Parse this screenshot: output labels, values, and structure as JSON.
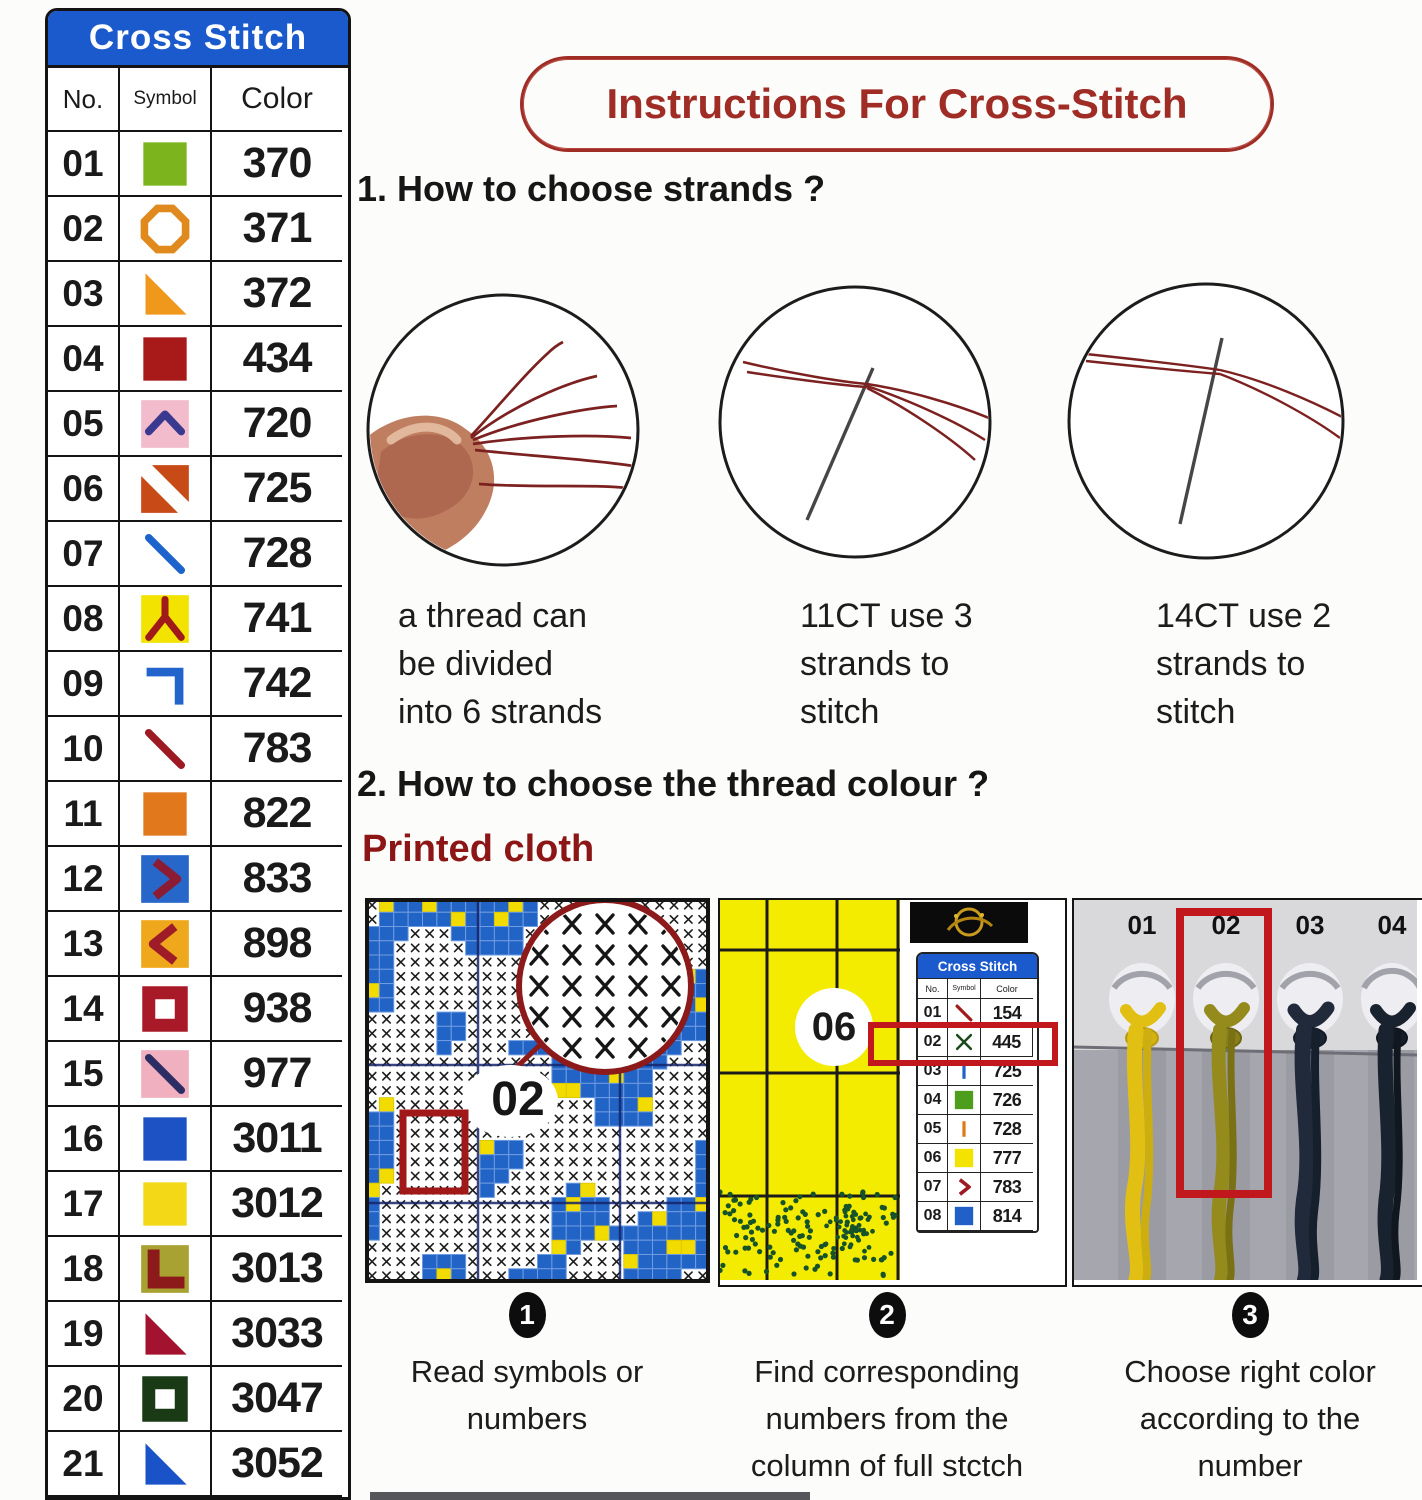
{
  "legend": {
    "title": "Cross Stitch",
    "header_bg": "#1a5acc",
    "columns": [
      "No.",
      "Symbol",
      "Color"
    ],
    "rows": [
      {
        "no": "01",
        "color": "370",
        "symbol": {
          "type": "square",
          "fill": "#7cb41e"
        }
      },
      {
        "no": "02",
        "color": "371",
        "symbol": {
          "type": "octagon",
          "stroke": "#e0891c"
        }
      },
      {
        "no": "03",
        "color": "372",
        "symbol": {
          "type": "triangle",
          "fill": "#f0981c"
        }
      },
      {
        "no": "04",
        "color": "434",
        "symbol": {
          "type": "square",
          "fill": "#a81a1a"
        }
      },
      {
        "no": "05",
        "color": "720",
        "symbol": {
          "type": "chevron-up",
          "bg": "#f2bccd",
          "stroke": "#39398f"
        }
      },
      {
        "no": "06",
        "color": "725",
        "symbol": {
          "type": "stripe-square",
          "fill": "#c84a16"
        }
      },
      {
        "no": "07",
        "color": "728",
        "symbol": {
          "type": "diagonal",
          "stroke": "#1d63cc"
        }
      },
      {
        "no": "08",
        "color": "741",
        "symbol": {
          "type": "inverted-y",
          "bg": "#f2e400",
          "stroke": "#a01a1a"
        }
      },
      {
        "no": "09",
        "color": "742",
        "symbol": {
          "type": "corner",
          "stroke": "#2263cc"
        }
      },
      {
        "no": "10",
        "color": "783",
        "symbol": {
          "type": "diagonal",
          "stroke": "#9e1a22"
        }
      },
      {
        "no": "11",
        "color": "822",
        "symbol": {
          "type": "square",
          "fill": "#e2781c"
        }
      },
      {
        "no": "12",
        "color": "833",
        "symbol": {
          "type": "chevron-right",
          "bg": "#2767ca",
          "stroke": "#8c1c34"
        }
      },
      {
        "no": "13",
        "color": "898",
        "symbol": {
          "type": "chevron-left",
          "bg": "#efa81c",
          "stroke": "#9e1c28"
        }
      },
      {
        "no": "14",
        "color": "938",
        "symbol": {
          "type": "hollow-square",
          "fill": "#a81a28"
        }
      },
      {
        "no": "15",
        "color": "977",
        "symbol": {
          "type": "diag-on-square",
          "bg": "#f0b0bf",
          "stroke": "#2d2d66"
        }
      },
      {
        "no": "16",
        "color": "3011",
        "symbol": {
          "type": "square",
          "fill": "#1c52c4"
        }
      },
      {
        "no": "17",
        "color": "3012",
        "symbol": {
          "type": "square",
          "fill": "#f2d816"
        }
      },
      {
        "no": "18",
        "color": "3013",
        "symbol": {
          "type": "l-shape",
          "bg": "#a8a233",
          "stroke": "#8c1a1a"
        }
      },
      {
        "no": "19",
        "color": "3033",
        "symbol": {
          "type": "triangle",
          "fill": "#a3122e"
        }
      },
      {
        "no": "20",
        "color": "3047",
        "symbol": {
          "type": "hollow-square",
          "fill": "#1a3a16"
        }
      },
      {
        "no": "21",
        "color": "3052",
        "symbol": {
          "type": "triangle",
          "fill": "#1a52c8"
        }
      }
    ]
  },
  "instructions": {
    "title": "Instructions For Cross-Stitch",
    "accent_color": "#a02c26",
    "section1": {
      "heading": "1. How to choose strands ?",
      "captions": [
        "a thread can\nbe divided\ninto 6 strands",
        "11CT use 3\nstrands to\nstitch",
        "14CT use 2\nstrands to\nstitch"
      ]
    },
    "section2": {
      "heading": "2. How to choose the thread colour ?",
      "subheading": "Printed cloth",
      "figure1": {
        "highlight_label": "02"
      },
      "figure2": {
        "cell_label": "06",
        "mini_table": {
          "title": "Cross Stitch",
          "columns": [
            "No.",
            "Symbol",
            "Color"
          ],
          "rows": [
            {
              "no": "01",
              "color": "154",
              "symbol": {
                "type": "diagonal",
                "stroke": "#a01a1a"
              }
            },
            {
              "no": "02",
              "color": "445",
              "symbol": {
                "type": "x-mark",
                "stroke": "#1a4a1a"
              },
              "highlight": true
            },
            {
              "no": "03",
              "color": "725",
              "symbol": {
                "type": "vline",
                "stroke": "#2060c8"
              }
            },
            {
              "no": "04",
              "color": "726",
              "symbol": {
                "type": "square",
                "fill": "#4e9e1e"
              }
            },
            {
              "no": "05",
              "color": "728",
              "symbol": {
                "type": "vline",
                "stroke": "#e07818"
              }
            },
            {
              "no": "06",
              "color": "777",
              "symbol": {
                "type": "square",
                "fill": "#f2e400"
              }
            },
            {
              "no": "07",
              "color": "783",
              "symbol": {
                "type": "chevron-right",
                "stroke": "#9e1a22"
              }
            },
            {
              "no": "08",
              "color": "814",
              "symbol": {
                "type": "square",
                "fill": "#2060c8"
              }
            }
          ]
        }
      },
      "figure3": {
        "labels": [
          "01",
          "02",
          "03",
          "04"
        ]
      },
      "steps": [
        {
          "num": "1",
          "caption": "Read symbols or\nnumbers"
        },
        {
          "num": "2",
          "caption": "Find corresponding\nnumbers from the\ncolumn of full stctch"
        },
        {
          "num": "3",
          "caption": "Choose right color\naccording to the\nnumber"
        }
      ]
    }
  }
}
